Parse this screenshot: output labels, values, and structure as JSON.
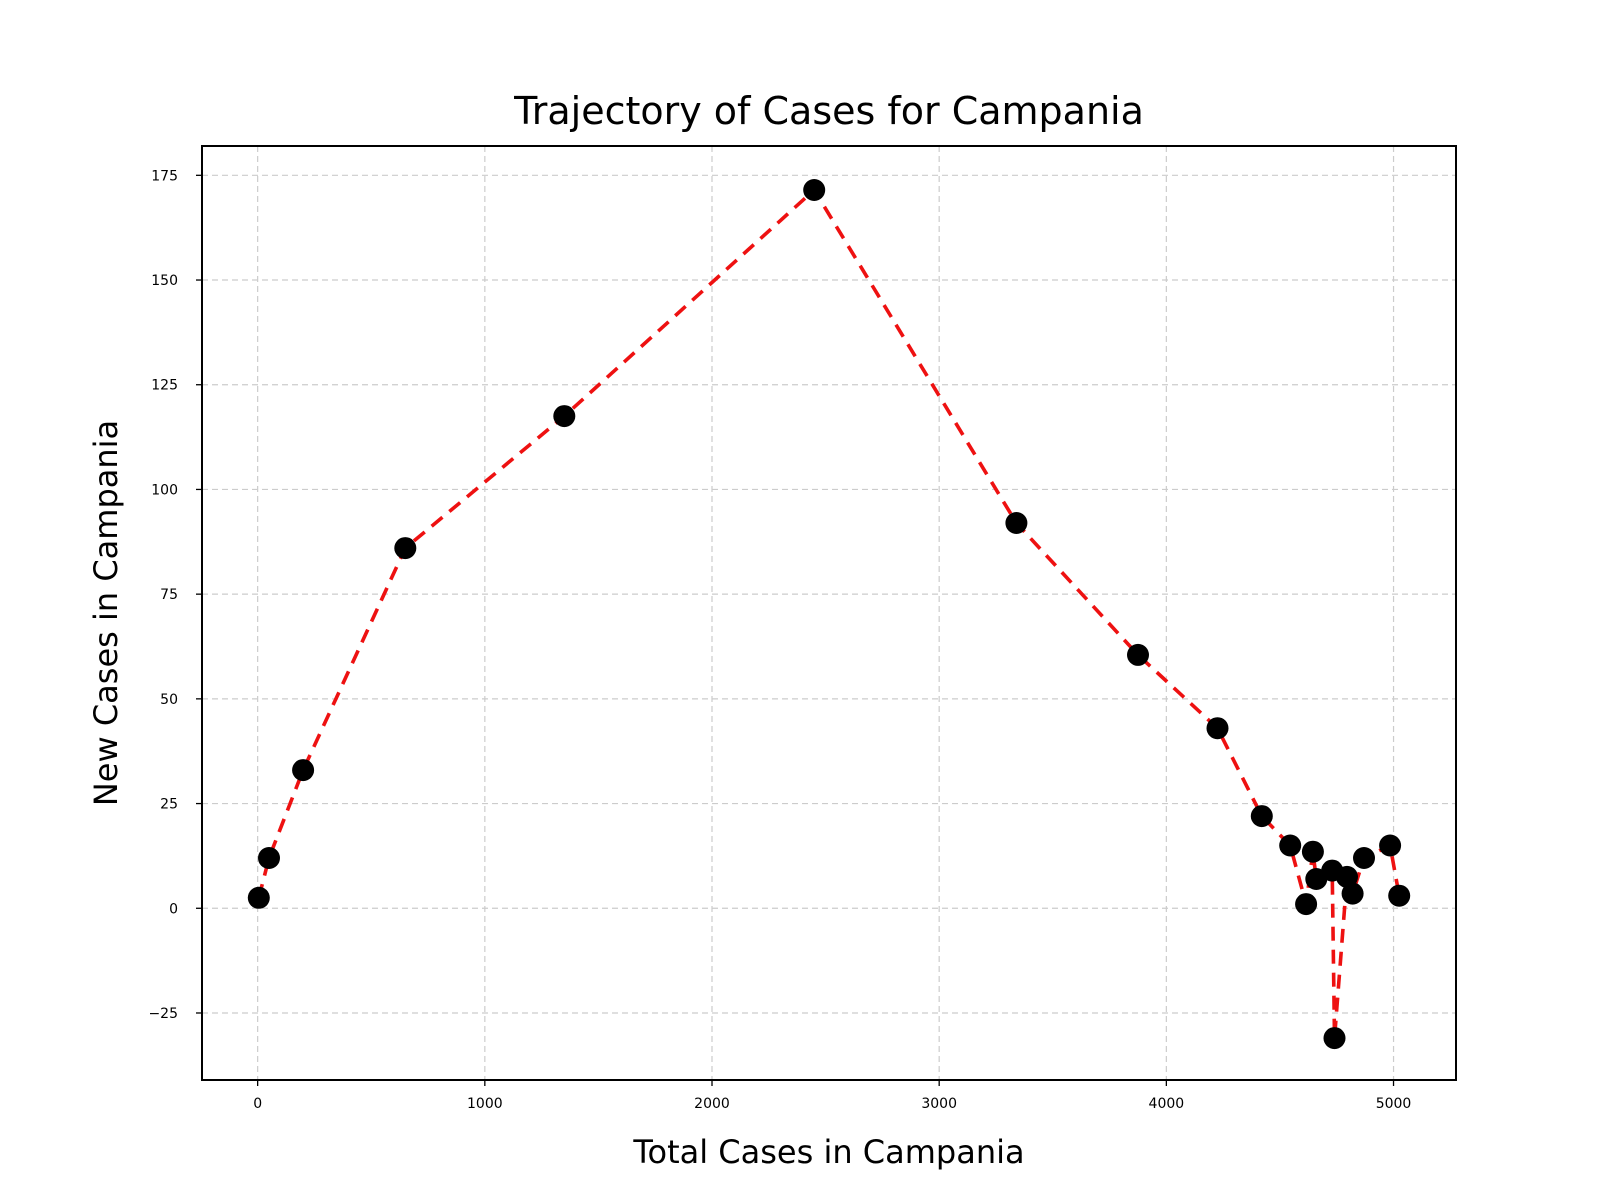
{
  "chart_data": {
    "type": "line",
    "title": "Trajectory of Cases for Campania",
    "xlabel": "Total Cases in Campania",
    "ylabel": "New Cases in Campania",
    "xlim": [
      -245,
      5275
    ],
    "ylim": [
      -41,
      182
    ],
    "xticks": [
      0,
      1000,
      2000,
      3000,
      4000,
      5000
    ],
    "yticks": [
      -25,
      0,
      25,
      50,
      75,
      100,
      125,
      150,
      175
    ],
    "grid": true,
    "line_color": "#ee1111",
    "line_style": "dashed",
    "marker_color": "#000000",
    "series": [
      {
        "x": [
          5,
          50,
          200,
          650,
          1350,
          2450,
          3340,
          3875,
          4225,
          4420,
          4545,
          4615,
          4645,
          4660,
          4730,
          4740,
          4795,
          4820,
          4870,
          4985,
          5025
        ],
        "y": [
          2.5,
          12,
          33,
          86,
          117.5,
          171.5,
          92,
          60.5,
          43,
          22,
          15,
          1,
          13.5,
          7,
          9,
          -31,
          7.5,
          3.5,
          12,
          15,
          3
        ]
      }
    ]
  }
}
